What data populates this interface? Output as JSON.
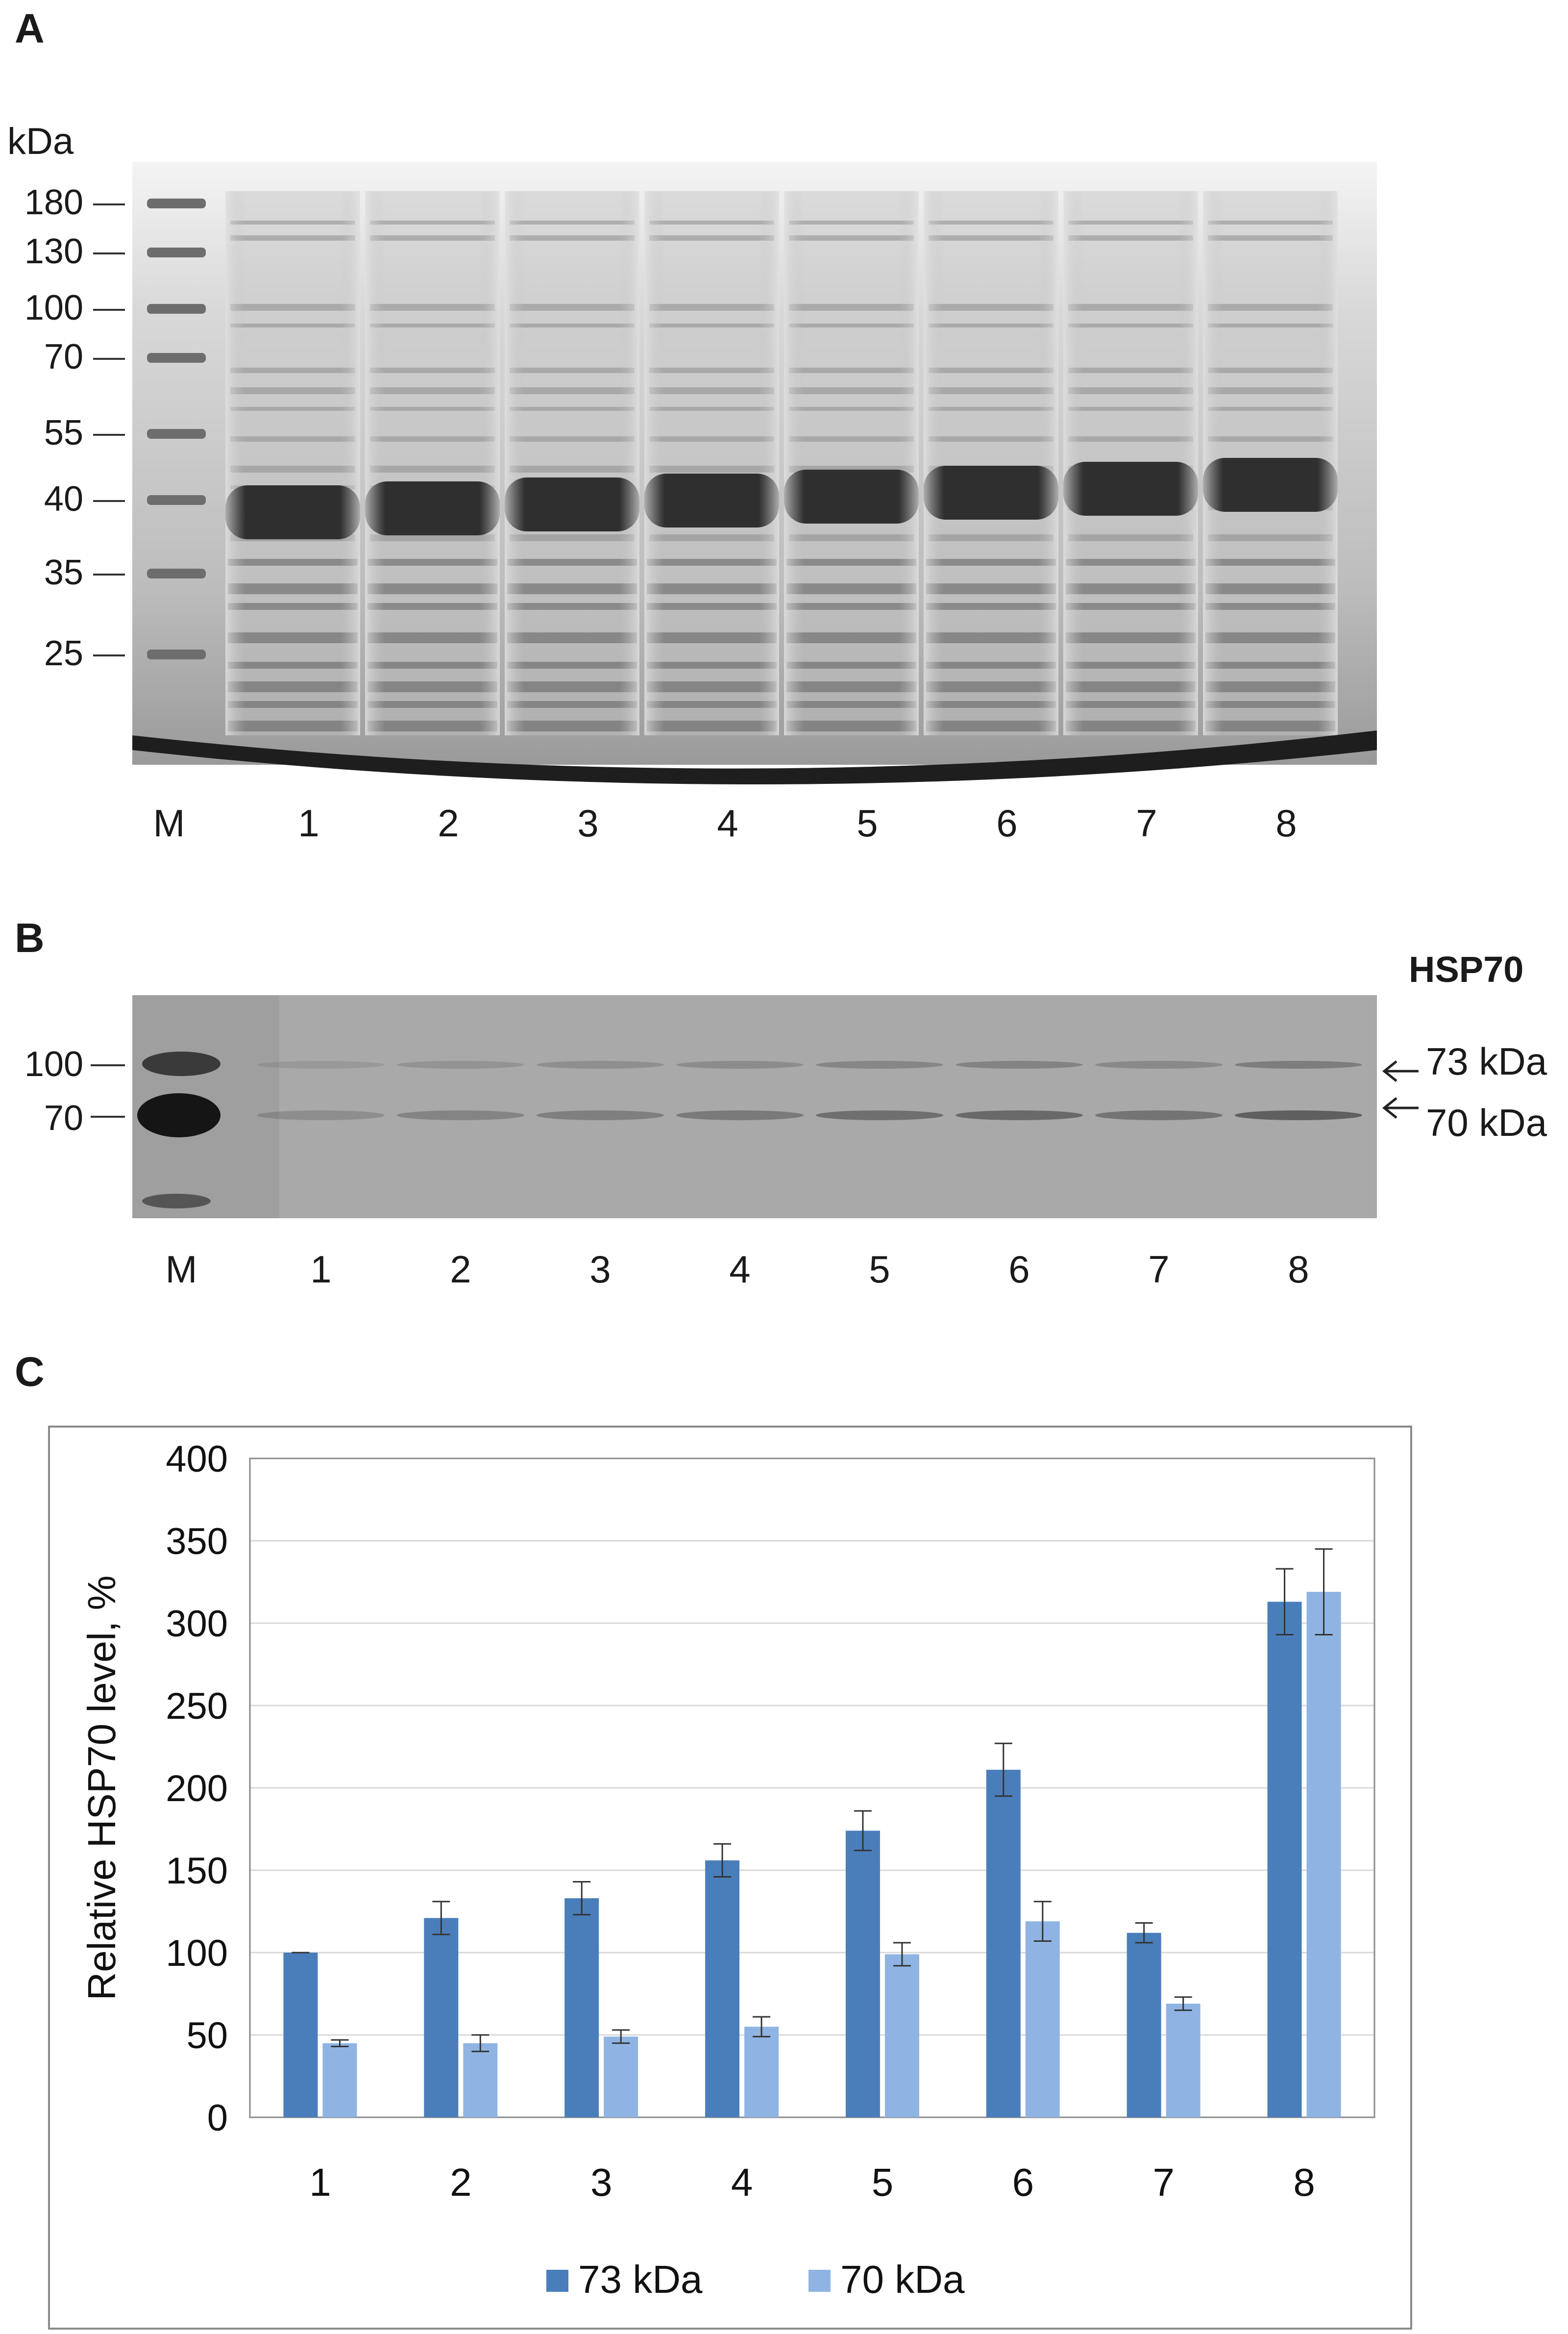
{
  "panel_a": {
    "letter": "A",
    "unit": "kDa",
    "markers": [
      "180",
      "130",
      "100",
      "70",
      "55",
      "40",
      "35",
      "25"
    ],
    "lanes": [
      "M",
      "1",
      "2",
      "3",
      "4",
      "5",
      "6",
      "7",
      "8"
    ]
  },
  "panel_b": {
    "letter": "B",
    "title": "HSP70",
    "markers": [
      "100",
      "70"
    ],
    "band_labels": [
      "73 kDa",
      "70 kDa"
    ],
    "lanes": [
      "M",
      "1",
      "2",
      "3",
      "4",
      "5",
      "6",
      "7",
      "8"
    ]
  },
  "panel_c": {
    "letter": "C"
  },
  "colors": {
    "series_73": "#4a7ebb",
    "series_70": "#8fb4e3",
    "gel_background": "#cfcfcf",
    "blot_background": "#9a9a9a"
  },
  "chart_data": {
    "type": "bar",
    "title": "",
    "xlabel": "",
    "ylabel": "Relative HSP70 level, %",
    "ylim": [
      0,
      400
    ],
    "yticks": [
      0,
      50,
      100,
      150,
      200,
      250,
      300,
      350,
      400
    ],
    "grid": true,
    "legend": "bottom-center",
    "categories": [
      "1",
      "2",
      "3",
      "4",
      "5",
      "6",
      "7",
      "8"
    ],
    "series": [
      {
        "name": "73 kDa",
        "values": [
          100,
          121,
          133,
          156,
          174,
          211,
          112,
          313
        ],
        "errors": [
          0,
          10,
          10,
          10,
          12,
          16,
          6,
          20
        ]
      },
      {
        "name": "70 kDa",
        "values": [
          45,
          45,
          49,
          55,
          99,
          119,
          69,
          319
        ],
        "errors": [
          2,
          5,
          4,
          6,
          7,
          12,
          4,
          26
        ]
      }
    ]
  }
}
